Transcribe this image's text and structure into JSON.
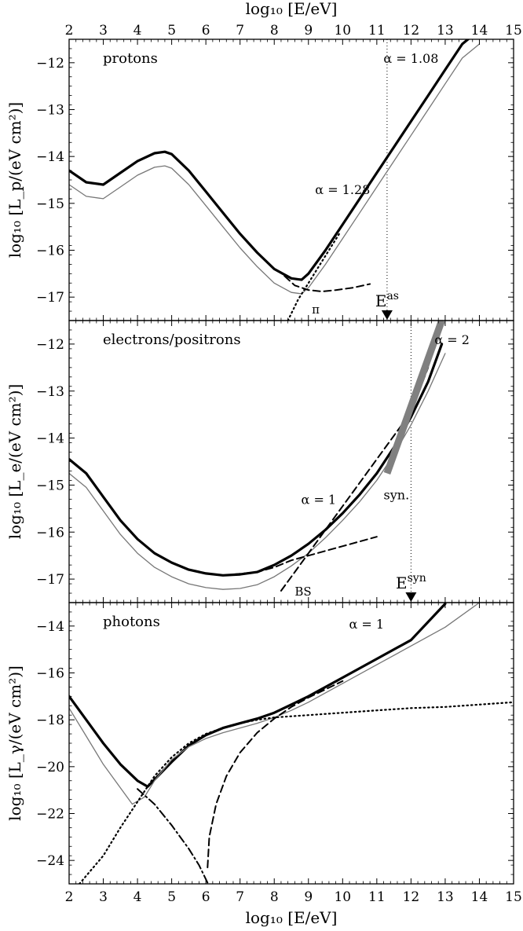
{
  "chart_data": {
    "type": "line",
    "x_axis": {
      "label": "log₁₀ [E/eV]",
      "xlim": [
        2,
        15
      ],
      "ticks": [
        2,
        3,
        4,
        5,
        6,
        7,
        8,
        9,
        10,
        11,
        12,
        13,
        14,
        15
      ]
    },
    "panels": [
      {
        "id": "protons",
        "title": "protons",
        "ylabel": "log₁₀ [L_p/(eV cm²)]",
        "ylim": [
          -17.5,
          -11.5
        ],
        "yticks": [
          -17,
          -16,
          -15,
          -14,
          -13,
          -12
        ],
        "vline": {
          "x": 11.3,
          "label": "E^as"
        },
        "annotations": [
          {
            "text": "α = 1.08",
            "x": 12.0,
            "y": -11.9
          },
          {
            "text": "α = 1.28",
            "x": 10.0,
            "y": -14.7
          },
          {
            "text": "π",
            "x": 9.1,
            "y": -17.25
          }
        ],
        "series": [
          {
            "role": "total",
            "x": [
              2.0,
              2.5,
              3.0,
              3.5,
              4.0,
              4.5,
              4.8,
              5.0,
              5.5,
              6.0,
              6.5,
              7.0,
              7.5,
              8.0,
              8.5,
              8.8,
              9.0,
              9.5,
              10.0,
              10.5,
              11.0,
              11.5,
              12.0,
              12.5,
              13.0,
              13.5,
              14.0
            ],
            "y": [
              -14.3,
              -14.55,
              -14.6,
              -14.35,
              -14.1,
              -13.93,
              -13.9,
              -13.95,
              -14.3,
              -14.75,
              -15.2,
              -15.65,
              -16.05,
              -16.4,
              -16.6,
              -16.63,
              -16.5,
              -16.0,
              -15.45,
              -14.9,
              -14.35,
              -13.8,
              -13.25,
              -12.7,
              -12.15,
              -11.6,
              -11.3
            ]
          },
          {
            "role": "lower",
            "x": [
              2.0,
              2.5,
              3.0,
              3.5,
              4.0,
              4.5,
              4.8,
              5.0,
              5.5,
              6.0,
              6.5,
              7.0,
              7.5,
              8.0,
              8.5,
              8.8,
              9.0,
              9.5,
              10.0,
              10.5,
              11.0,
              11.5,
              12.0,
              12.5,
              13.0,
              13.5,
              14.0
            ],
            "y": [
              -14.6,
              -14.85,
              -14.9,
              -14.65,
              -14.4,
              -14.23,
              -14.2,
              -14.25,
              -14.6,
              -15.05,
              -15.5,
              -15.95,
              -16.35,
              -16.7,
              -16.9,
              -16.93,
              -16.8,
              -16.3,
              -15.75,
              -15.2,
              -14.65,
              -14.1,
              -13.55,
              -13.0,
              -12.45,
              -11.9,
              -11.6
            ]
          },
          {
            "role": "dashed",
            "x": [
              8.3,
              8.6,
              9.0,
              9.4,
              9.8,
              10.3,
              10.8
            ],
            "y": [
              -16.55,
              -16.75,
              -16.85,
              -16.88,
              -16.85,
              -16.8,
              -16.72
            ]
          },
          {
            "role": "dotted",
            "x": [
              8.4,
              8.7,
              9.0,
              9.3,
              9.6,
              9.9
            ],
            "y": [
              -17.5,
              -17.05,
              -16.7,
              -16.35,
              -16.0,
              -15.65
            ]
          }
        ]
      },
      {
        "id": "electrons",
        "title": "electrons/positrons",
        "ylabel": "log₁₀ [L_e/(eV cm²)]",
        "ylim": [
          -17.5,
          -11.5
        ],
        "yticks": [
          -17,
          -16,
          -15,
          -14,
          -13,
          -12
        ],
        "vline": {
          "x": 12.0,
          "label": "E^syn"
        },
        "annotations": [
          {
            "text": "α = 2",
            "x": 13.2,
            "y": -11.9
          },
          {
            "text": "α = 1",
            "x": 9.3,
            "y": -15.3
          },
          {
            "text": "syn.",
            "x": 11.2,
            "y": -15.2
          },
          {
            "text": "BS",
            "x": 8.6,
            "y": -17.25
          }
        ],
        "series": [
          {
            "role": "total",
            "x": [
              2.0,
              2.5,
              3.0,
              3.5,
              4.0,
              4.5,
              5.0,
              5.5,
              6.0,
              6.5,
              7.0,
              7.5,
              8.0,
              8.5,
              9.0,
              9.5,
              10.0,
              10.5,
              11.0,
              11.5,
              12.0,
              12.5,
              12.9
            ],
            "y": [
              -14.45,
              -14.75,
              -15.25,
              -15.75,
              -16.15,
              -16.45,
              -16.65,
              -16.8,
              -16.88,
              -16.92,
              -16.9,
              -16.85,
              -16.7,
              -16.5,
              -16.25,
              -15.95,
              -15.6,
              -15.2,
              -14.75,
              -14.2,
              -13.55,
              -12.8,
              -12.0
            ]
          },
          {
            "role": "lower",
            "x": [
              2.0,
              2.5,
              3.0,
              3.5,
              4.0,
              4.5,
              5.0,
              5.5,
              6.0,
              6.5,
              7.0,
              7.5,
              8.0,
              8.5,
              9.0,
              9.5,
              10.0,
              10.5,
              11.0,
              11.5,
              12.0,
              12.5,
              13.0
            ],
            "y": [
              -14.75,
              -15.05,
              -15.55,
              -16.05,
              -16.45,
              -16.75,
              -16.95,
              -17.1,
              -17.18,
              -17.22,
              -17.2,
              -17.12,
              -16.95,
              -16.72,
              -16.45,
              -16.12,
              -15.75,
              -15.35,
              -14.9,
              -14.35,
              -13.72,
              -13.0,
              -12.2
            ]
          },
          {
            "role": "dashed",
            "x": [
              6.8,
              7.5,
              8.0,
              8.5,
              9.0,
              9.5,
              10.0,
              10.5,
              11.0
            ],
            "y": [
              -16.9,
              -16.85,
              -16.75,
              -16.6,
              -16.5,
              -16.4,
              -16.3,
              -16.2,
              -16.1
            ]
          },
          {
            "role": "dashed",
            "x": [
              8.2,
              8.6,
              9.0,
              9.5,
              10.0,
              10.5,
              11.0,
              11.5,
              12.0,
              12.5
            ],
            "y": [
              -17.25,
              -16.85,
              -16.45,
              -15.95,
              -15.45,
              -14.95,
              -14.45,
              -13.95,
              -13.45,
              -12.5
            ]
          },
          {
            "role": "syn_band",
            "x": [
              11.3,
              12.9
            ],
            "y": [
              -14.75,
              -11.5
            ]
          }
        ]
      },
      {
        "id": "photons",
        "title": "photons",
        "ylabel": "log₁₀ [L_γ/(eV cm²)]",
        "ylim": [
          -25,
          -13
        ],
        "yticks": [
          -24,
          -22,
          -20,
          -18,
          -16,
          -14
        ],
        "annotations": [
          {
            "text": "α = 1",
            "x": 10.7,
            "y": -13.9
          }
        ],
        "series": [
          {
            "role": "total",
            "x": [
              2.0,
              2.5,
              3.0,
              3.5,
              4.0,
              4.3,
              4.5,
              5.0,
              5.5,
              6.0,
              6.5,
              7.0,
              7.5,
              8.0,
              8.5,
              9.0,
              10.0,
              11.0,
              12.0,
              13.0
            ],
            "y": [
              -17.0,
              -18.0,
              -19.0,
              -19.9,
              -20.6,
              -20.85,
              -20.55,
              -19.8,
              -19.1,
              -18.65,
              -18.35,
              -18.15,
              -17.95,
              -17.7,
              -17.35,
              -17.0,
              -16.2,
              -15.4,
              -14.6,
              -13.05
            ]
          },
          {
            "role": "lower",
            "x": [
              2.0,
              2.5,
              3.0,
              3.5,
              3.85,
              4.2,
              4.5,
              5.0,
              5.5,
              6.0,
              6.5,
              7.0,
              7.5,
              8.0,
              8.5,
              9.0,
              10.0,
              11.0,
              12.0,
              13.0,
              14.0
            ],
            "y": [
              -17.5,
              -18.7,
              -19.9,
              -20.9,
              -21.6,
              -21.3,
              -20.6,
              -19.7,
              -19.15,
              -18.8,
              -18.55,
              -18.35,
              -18.15,
              -17.9,
              -17.6,
              -17.25,
              -16.45,
              -15.65,
              -14.85,
              -14.05,
              -13.0
            ]
          },
          {
            "role": "dashdot",
            "x": [
              4.0,
              4.5,
              5.0,
              5.5,
              5.8,
              6.05
            ],
            "y": [
              -20.95,
              -21.6,
              -22.5,
              -23.5,
              -24.2,
              -24.95
            ]
          },
          {
            "role": "dotted",
            "x": [
              2.3,
              3.0,
              3.5,
              4.0,
              4.5,
              5.0,
              5.5,
              6.0,
              6.5,
              7.0,
              7.5,
              8.0,
              9.0,
              10.0,
              11.0,
              12.0,
              13.0,
              14.0,
              15.0
            ],
            "y": [
              -25.0,
              -23.8,
              -22.6,
              -21.5,
              -20.4,
              -19.6,
              -19.0,
              -18.6,
              -18.35,
              -18.15,
              -18.0,
              -17.9,
              -17.8,
              -17.7,
              -17.6,
              -17.5,
              -17.45,
              -17.35,
              -17.25
            ]
          },
          {
            "role": "dashed",
            "x": [
              6.05,
              6.1,
              6.3,
              6.6,
              7.0,
              7.5,
              8.0,
              8.5,
              9.0,
              9.5,
              10.0
            ],
            "y": [
              -24.3,
              -23.0,
              -21.6,
              -20.4,
              -19.4,
              -18.55,
              -17.95,
              -17.45,
              -17.05,
              -16.7,
              -16.35
            ]
          }
        ]
      }
    ]
  }
}
